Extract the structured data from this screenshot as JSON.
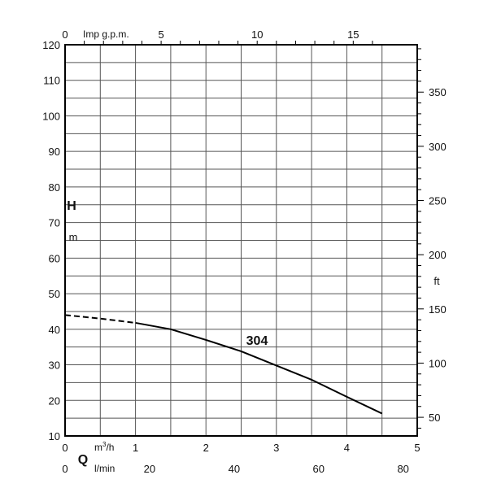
{
  "chart_data": {
    "type": "line",
    "series": [
      {
        "name": "304",
        "x": [
          0,
          0.5,
          1.0,
          1.5,
          2.0,
          2.5,
          3.0,
          3.5,
          4.0,
          4.5
        ],
        "y": [
          44,
          43,
          41.8,
          40,
          37,
          33.8,
          29.8,
          25.8,
          21,
          16.3
        ],
        "dashed_until_x": 1.0
      }
    ],
    "xlim": [
      0,
      5
    ],
    "ylim": [
      10,
      120
    ],
    "x_ticks": [
      "0",
      "1",
      "2",
      "3",
      "4",
      "5"
    ],
    "y_ticks": [
      "10",
      "20",
      "30",
      "40",
      "50",
      "60",
      "70",
      "80",
      "90",
      "100",
      "110",
      "120"
    ],
    "grid": true,
    "axes": {
      "y_label_H": "H",
      "y_label_m": "m",
      "x_label_Q": "Q",
      "x_unit_m3h_base": "m",
      "x_unit_m3h_exp": "3",
      "x_unit_m3h_tail": "/h",
      "x_unit_lmin": "l/min",
      "top_unit": "Imp g.p.m.",
      "right_unit": "ft"
    },
    "secondary_axes": {
      "top_ticks": [
        {
          "label": "0",
          "value": 0
        },
        {
          "label": "5",
          "value": 5
        },
        {
          "label": "10",
          "value": 10
        },
        {
          "label": "15",
          "value": 15
        }
      ],
      "right_ticks": [
        {
          "label": "50",
          "value": 50
        },
        {
          "label": "100",
          "value": 100
        },
        {
          "label": "150",
          "value": 150
        },
        {
          "label": "200",
          "value": 200
        },
        {
          "label": "250",
          "value": 250
        },
        {
          "label": "300",
          "value": 300
        },
        {
          "label": "350",
          "value": 350
        }
      ],
      "bottom_lmin_ticks": [
        {
          "label": "0",
          "value": 0
        },
        {
          "label": "20",
          "value": 20
        },
        {
          "label": "40",
          "value": 40
        },
        {
          "label": "60",
          "value": 60
        },
        {
          "label": "80",
          "value": 80
        }
      ]
    },
    "colors": {
      "line": "#000000",
      "grid": "#555555",
      "frame": "#000000"
    }
  }
}
